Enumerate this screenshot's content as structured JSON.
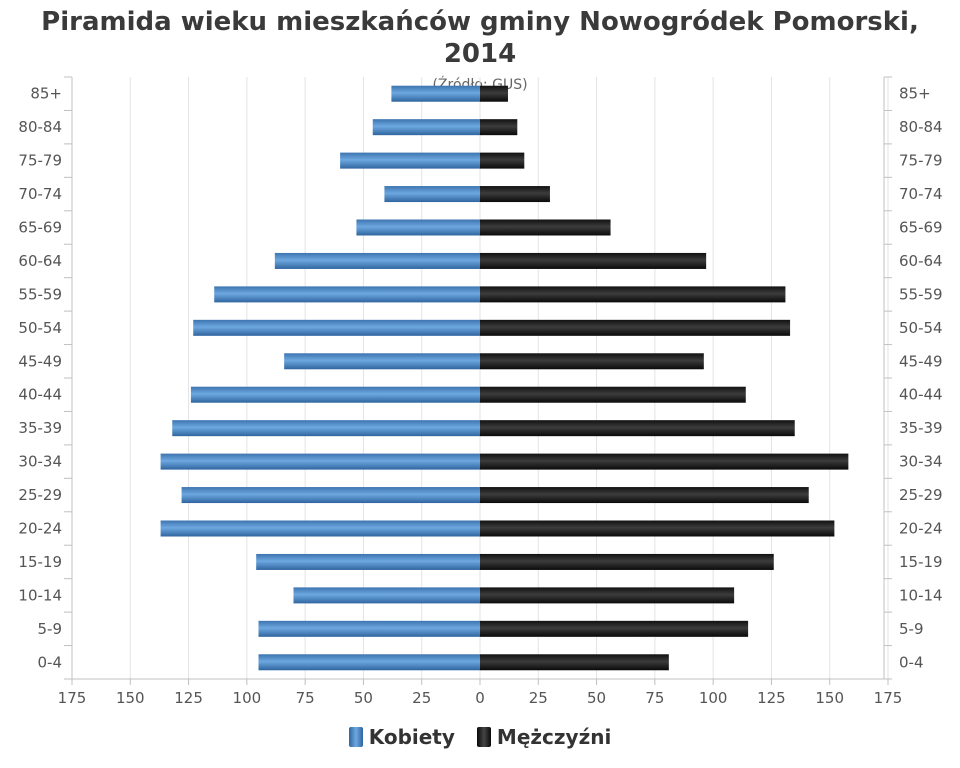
{
  "chart_data": {
    "type": "bar",
    "title": "Piramida wieku mieszkańców gminy Nowogródek Pomorski,\n2014",
    "subtitle": "(Źródło: GUS)",
    "categories": [
      "0-4",
      "5-9",
      "10-14",
      "15-19",
      "20-24",
      "25-29",
      "30-34",
      "35-39",
      "40-44",
      "45-49",
      "50-54",
      "55-59",
      "60-64",
      "65-69",
      "70-74",
      "75-79",
      "80-84",
      "85+"
    ],
    "series": [
      {
        "name": "Kobiety",
        "color": "#4a8acb",
        "values": [
          95,
          95,
          80,
          96,
          137,
          128,
          137,
          132,
          124,
          84,
          123,
          114,
          88,
          53,
          41,
          60,
          46,
          38
        ]
      },
      {
        "name": "Mężczyźni",
        "color": "#1a1a1a",
        "values": [
          81,
          115,
          109,
          126,
          152,
          141,
          158,
          135,
          114,
          96,
          133,
          131,
          97,
          56,
          30,
          19,
          16,
          12
        ]
      }
    ],
    "xlim": [
      -175,
      175
    ],
    "xticks": [
      "175",
      "150",
      "125",
      "100",
      "75",
      "50",
      "25",
      "0",
      "25",
      "50",
      "75",
      "100",
      "125",
      "150",
      "175"
    ],
    "grid": true,
    "legend_position": "bottom-center"
  }
}
